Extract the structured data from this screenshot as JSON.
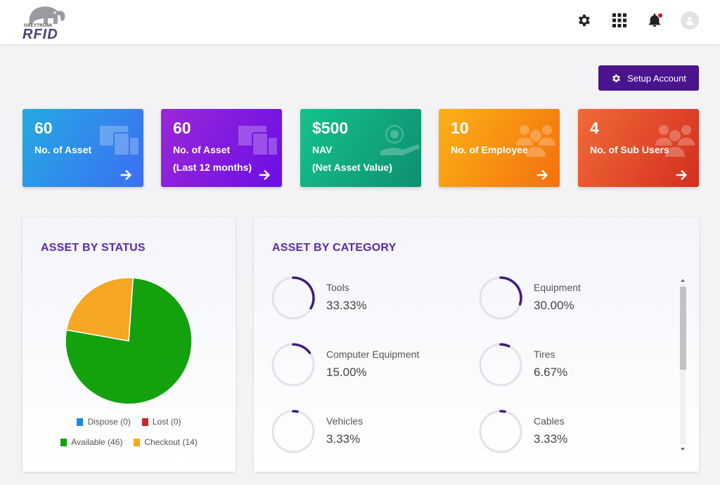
{
  "header": {
    "logo_small": "GREYTRUNK",
    "logo_big": "RFID",
    "icons": [
      "gear-icon",
      "apps-grid-icon",
      "bell-icon",
      "avatar-icon"
    ],
    "notification_color": "#e01010"
  },
  "setup_button": {
    "label": "Setup Account",
    "icon": "gear-icon",
    "color": "#4a148c"
  },
  "cards": [
    {
      "value": "60",
      "label_line1": "No. of Asset",
      "label_line2": "",
      "icon": "devices-icon"
    },
    {
      "value": "60",
      "label_line1": "No. of Asset",
      "label_line2": "(Last 12 months)",
      "icon": "devices-icon"
    },
    {
      "value": "$500",
      "label_line1": "NAV",
      "label_line2": "(Net Asset Value)",
      "icon": "money-hand-icon"
    },
    {
      "value": "10",
      "label_line1": "No. of Employee",
      "label_line2": "",
      "icon": "group-icon"
    },
    {
      "value": "4",
      "label_line1": "No. of Sub Users",
      "label_line2": "",
      "icon": "group-icon"
    }
  ],
  "status_panel": {
    "title": "ASSET BY STATUS",
    "legend": [
      {
        "label": "Dispose (0)",
        "color": "#1e88e5"
      },
      {
        "label": "Lost (0)",
        "color": "#c62828"
      },
      {
        "label": "Available (46)",
        "color": "#13a10e"
      },
      {
        "label": "Checkout (14)",
        "color": "#f5a623"
      }
    ],
    "chart_data": {
      "type": "pie",
      "categories": [
        "Dispose",
        "Lost",
        "Available",
        "Checkout"
      ],
      "values": [
        0,
        0,
        46,
        14
      ],
      "colors": [
        "#1e88e5",
        "#c62828",
        "#13a10e",
        "#f5a623"
      ]
    }
  },
  "category_panel": {
    "title": "ASSET BY CATEGORY",
    "items": [
      {
        "name": "Tools",
        "percent": "33.33%",
        "value": 33.33
      },
      {
        "name": "Equipment",
        "percent": "30.00%",
        "value": 30.0
      },
      {
        "name": "Computer Equipment",
        "percent": "15.00%",
        "value": 15.0
      },
      {
        "name": "Tires",
        "percent": "6.67%",
        "value": 6.67
      },
      {
        "name": "Vehicles",
        "percent": "3.33%",
        "value": 3.33
      },
      {
        "name": "Cables",
        "percent": "3.33%",
        "value": 3.33
      }
    ],
    "ring_color": "#3f1a7a",
    "track_color": "#e2e2e8"
  }
}
